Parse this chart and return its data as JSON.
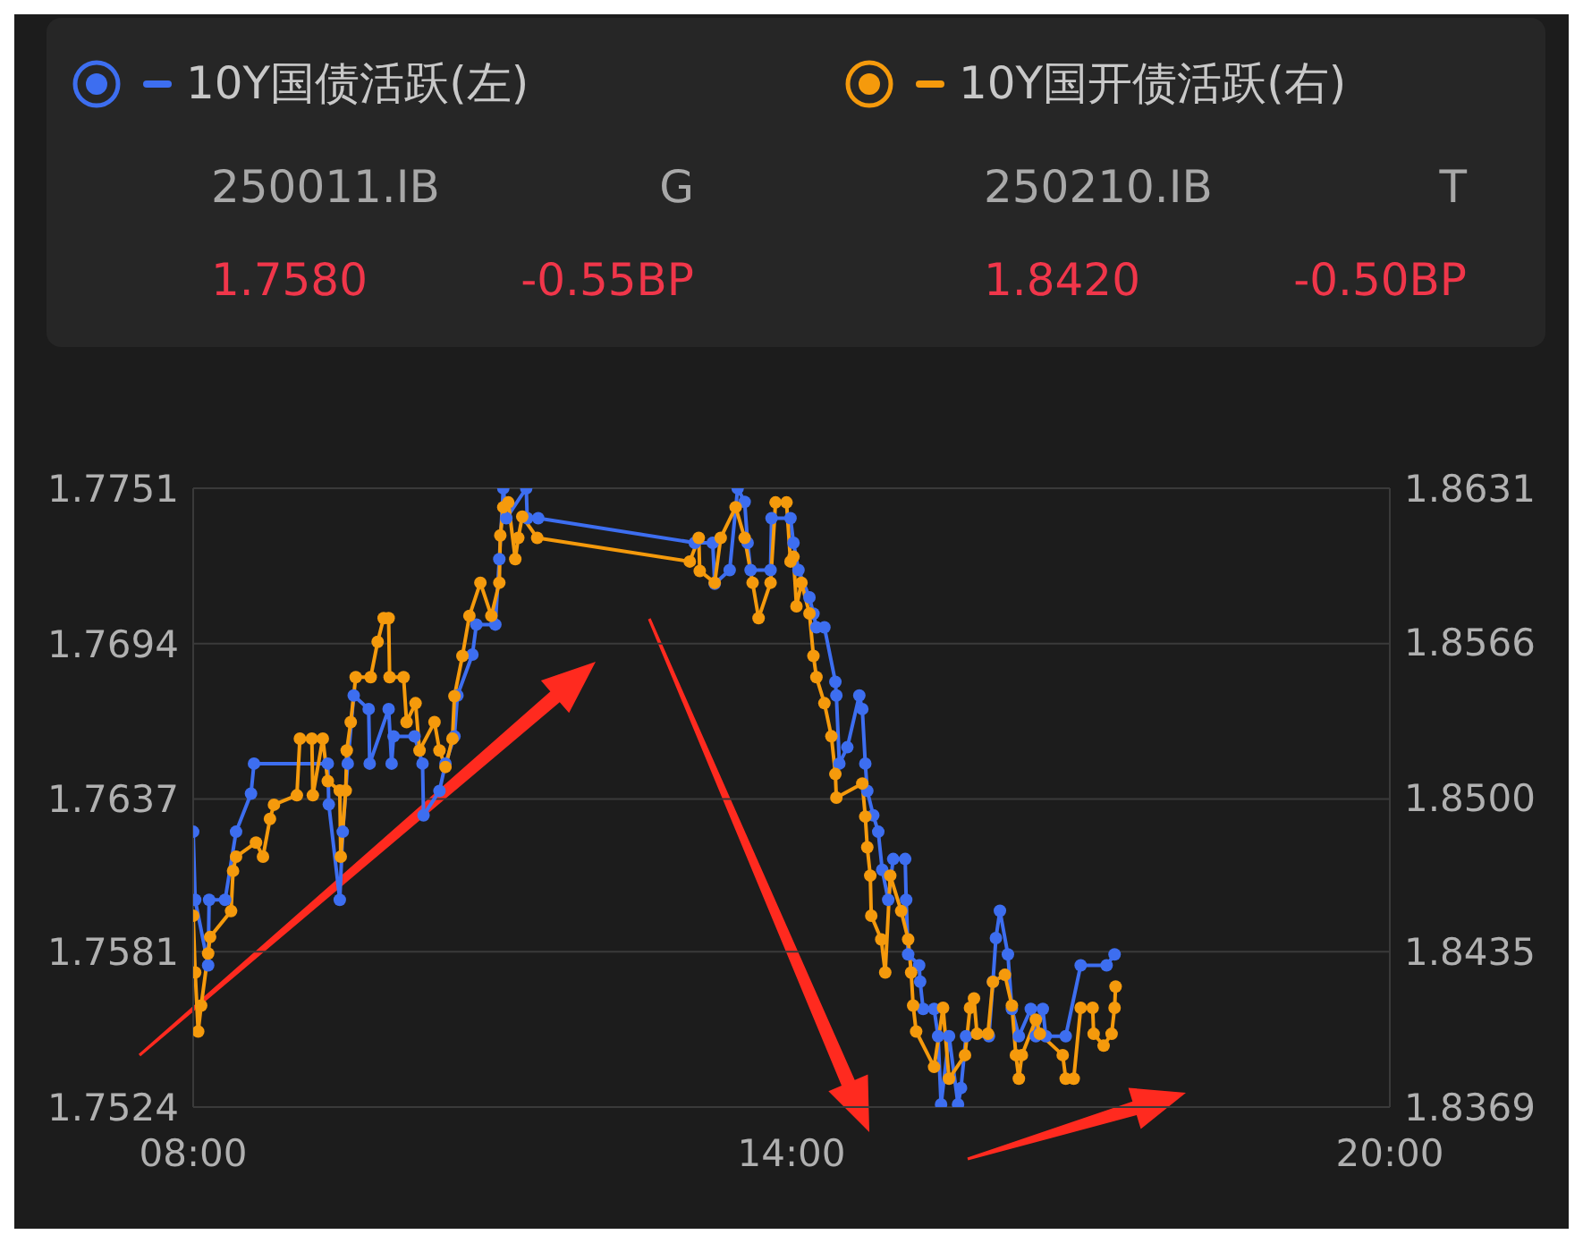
{
  "chart_data": {
    "type": "line",
    "legend": "top",
    "grid": "y",
    "marker": "circle",
    "line_style": "solid",
    "tick_labels": "xy",
    "annotations": [
      "250011.IB",
      "G",
      "1.7580",
      "-0.55BP",
      "250210.IB",
      "T",
      "1.8420",
      "-0.50BP"
    ],
    "xlim": [
      8,
      20
    ],
    "xticks": [
      {
        "value": 8,
        "label": "08:00"
      },
      {
        "value": 14,
        "label": "14:00"
      },
      {
        "value": 20,
        "label": "20:00"
      }
    ],
    "ylim": [
      1.7524,
      1.7751
    ],
    "yticks": [
      1.7524,
      1.7581,
      1.7637,
      1.7694,
      1.7751
    ],
    "y2lim": [
      1.8369,
      1.8631
    ],
    "y2ticks": [
      1.8369,
      1.8435,
      {
        "value": 1.85,
        "label": "1.8500"
      },
      1.8566,
      1.8631
    ],
    "series": [
      {
        "name": "10Y国债活跃(左)",
        "color": "#3d6ef0",
        "x": [
          8.0,
          8.02,
          8.15,
          8.16,
          8.32,
          8.43,
          8.58,
          8.61,
          9.35,
          9.36,
          9.47,
          9.5,
          9.55,
          9.61,
          9.76,
          9.77,
          9.96,
          9.99,
          10.01,
          10.22,
          10.3,
          10.31,
          10.47,
          10.53,
          10.62,
          10.65,
          10.8,
          10.84,
          11.03,
          11.07,
          11.11,
          11.14,
          11.34,
          11.35,
          11.46,
          13.03,
          13.21,
          13.23,
          13.38,
          13.46,
          13.53,
          13.56,
          13.59,
          13.79,
          13.8,
          13.99,
          14.02,
          14.07,
          14.18,
          14.22,
          14.25,
          14.33,
          14.44,
          14.45,
          14.48,
          14.56,
          14.68,
          14.71,
          14.74,
          14.76,
          14.82,
          14.87,
          14.91,
          14.97,
          15.02,
          15.14,
          15.15,
          15.17,
          15.28,
          15.29,
          15.32,
          15.43,
          15.47,
          15.5,
          15.58,
          15.67,
          15.7,
          15.75,
          15.98,
          16.02,
          16.05,
          16.09,
          16.17,
          16.21,
          16.28,
          16.4,
          16.45,
          16.52,
          16.55,
          16.75,
          16.9,
          17.16,
          17.24
        ],
        "values": [
          1.7625,
          1.76,
          1.7576,
          1.76,
          1.76,
          1.7625,
          1.7639,
          1.765,
          1.765,
          1.7635,
          1.76,
          1.7625,
          1.765,
          1.7675,
          1.767,
          1.765,
          1.767,
          1.765,
          1.766,
          1.766,
          1.765,
          1.7631,
          1.764,
          1.765,
          1.766,
          1.7675,
          1.769,
          1.7701,
          1.7701,
          1.7725,
          1.7751,
          1.774,
          1.7751,
          1.774,
          1.774,
          1.7731,
          1.7731,
          1.7716,
          1.7721,
          1.7751,
          1.7746,
          1.7731,
          1.7721,
          1.7721,
          1.774,
          1.774,
          1.7731,
          1.7721,
          1.7711,
          1.7705,
          1.77,
          1.77,
          1.768,
          1.7675,
          1.765,
          1.7656,
          1.7675,
          1.767,
          1.765,
          1.764,
          1.7631,
          1.7625,
          1.7611,
          1.76,
          1.7615,
          1.7615,
          1.76,
          1.758,
          1.7576,
          1.757,
          1.756,
          1.756,
          1.755,
          1.7525,
          1.755,
          1.7525,
          1.7531,
          1.755,
          1.755,
          1.757,
          1.7586,
          1.7596,
          1.758,
          1.756,
          1.755,
          1.756,
          1.755,
          1.756,
          1.755,
          1.755,
          1.7576,
          1.7576,
          1.758
        ]
      },
      {
        "name": "10Y国开债活跃(右)",
        "color": "#f59a0c",
        "axis": "y2",
        "x": [
          8.0,
          8.02,
          8.05,
          8.08,
          8.15,
          8.17,
          8.38,
          8.4,
          8.43,
          8.63,
          8.7,
          8.77,
          8.81,
          9.04,
          9.07,
          9.19,
          9.2,
          9.3,
          9.35,
          9.47,
          9.48,
          9.53,
          9.54,
          9.58,
          9.63,
          9.78,
          9.85,
          9.91,
          9.96,
          9.97,
          10.11,
          10.14,
          10.23,
          10.27,
          10.42,
          10.47,
          10.53,
          10.6,
          10.62,
          10.7,
          10.77,
          10.88,
          10.99,
          11.07,
          11.08,
          11.11,
          11.16,
          11.23,
          11.26,
          11.3,
          11.45,
          12.98,
          13.07,
          13.08,
          13.23,
          13.29,
          13.44,
          13.53,
          13.61,
          13.67,
          13.79,
          13.84,
          13.95,
          13.99,
          14.02,
          14.05,
          14.1,
          14.18,
          14.22,
          14.25,
          14.33,
          14.4,
          14.44,
          14.45,
          14.71,
          14.74,
          14.76,
          14.79,
          14.8,
          14.9,
          14.94,
          14.99,
          15.1,
          15.17,
          15.2,
          15.22,
          15.25,
          15.43,
          15.52,
          15.58,
          15.74,
          15.79,
          15.83,
          15.86,
          15.97,
          16.02,
          16.14,
          16.21,
          16.25,
          16.28,
          16.31,
          16.45,
          16.49,
          16.72,
          16.75,
          16.83,
          16.9,
          17.02,
          17.03,
          17.13,
          17.21,
          17.24,
          17.25
        ],
        "values": [
          1.845,
          1.8426,
          1.8401,
          1.8412,
          1.8434,
          1.8441,
          1.8452,
          1.8469,
          1.8475,
          1.8481,
          1.8475,
          1.8491,
          1.8497,
          1.8501,
          1.8525,
          1.8525,
          1.8501,
          1.8525,
          1.8507,
          1.8503,
          1.8475,
          1.8503,
          1.852,
          1.8532,
          1.8551,
          1.8551,
          1.8566,
          1.8576,
          1.8576,
          1.8551,
          1.8551,
          1.8532,
          1.854,
          1.852,
          1.8532,
          1.852,
          1.8513,
          1.8525,
          1.8543,
          1.856,
          1.8577,
          1.8591,
          1.8577,
          1.8591,
          1.8611,
          1.8623,
          1.8625,
          1.8601,
          1.861,
          1.8619,
          1.861,
          1.86,
          1.861,
          1.8596,
          1.8591,
          1.861,
          1.8623,
          1.861,
          1.8591,
          1.8576,
          1.8591,
          1.8625,
          1.8625,
          1.86,
          1.8602,
          1.8581,
          1.8591,
          1.8578,
          1.856,
          1.8551,
          1.854,
          1.8526,
          1.851,
          1.85,
          1.8506,
          1.8492,
          1.8479,
          1.8467,
          1.845,
          1.844,
          1.8426,
          1.8467,
          1.8452,
          1.844,
          1.8426,
          1.8412,
          1.8401,
          1.8386,
          1.8411,
          1.8381,
          1.8391,
          1.8411,
          1.8415,
          1.84,
          1.84,
          1.8422,
          1.8425,
          1.8412,
          1.8391,
          1.8381,
          1.8391,
          1.8406,
          1.84,
          1.8391,
          1.8381,
          1.8381,
          1.8411,
          1.8411,
          1.84,
          1.8395,
          1.84,
          1.8411,
          1.842
        ]
      }
    ]
  }
}
